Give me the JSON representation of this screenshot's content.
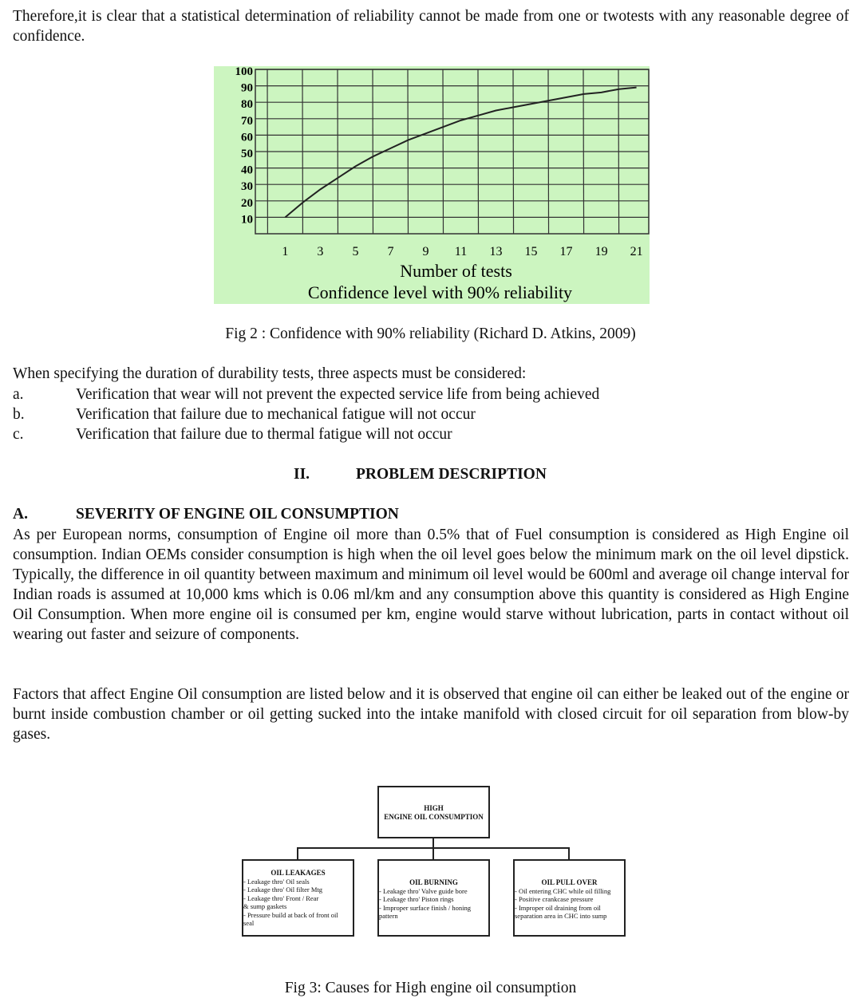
{
  "intro": "Therefore,it is clear that a statistical determination of reliability cannot be made from one or twotests with any reasonable degree of confidence.",
  "chart_data": {
    "type": "line",
    "xlabel": "Number of tests",
    "subtitle": "Confidence level with 90% reliability",
    "x": [
      1,
      2,
      3,
      4,
      5,
      6,
      7,
      8,
      9,
      10,
      11,
      12,
      13,
      14,
      15,
      16,
      17,
      18,
      19,
      20,
      21
    ],
    "values": [
      10,
      19,
      27,
      34,
      41,
      47,
      52,
      57,
      61,
      65,
      69,
      72,
      75,
      77,
      79,
      81,
      83,
      85,
      86,
      88,
      89
    ],
    "color": "#222222",
    "background": "#ccf5c0",
    "xlim": [
      -0.7,
      21.7
    ],
    "xticks": [
      1,
      3,
      5,
      7,
      9,
      11,
      13,
      15,
      17,
      19,
      21
    ],
    "ylim": [
      0,
      100
    ],
    "yticks": [
      10,
      20,
      30,
      40,
      50,
      60,
      70,
      80,
      90,
      100
    ],
    "grid": true
  },
  "fig2_caption": "Fig 2 : Confidence with 90% reliability (Richard D. Atkins, 2009)",
  "aspects": {
    "lead": "When specifying the duration of durability tests, three aspects must be considered:",
    "items": [
      {
        "marker": "a.",
        "text": "Verification that wear will not prevent the expected service life from being achieved"
      },
      {
        "marker": "b.",
        "text": "Verification that failure due to mechanical fatigue will not occur"
      },
      {
        "marker": "c.",
        "text": "Verification that failure due to thermal fatigue will not occur"
      }
    ]
  },
  "section": {
    "number": "II.",
    "title": "PROBLEM DESCRIPTION"
  },
  "subsection": {
    "number": "A.",
    "title": "SEVERITY OF ENGINE OIL CONSUMPTION"
  },
  "paragraphs": [
    "As per European norms, consumption of Engine oil more than 0.5% that of Fuel consumption is considered as High Engine oil consumption. Indian OEMs consider consumption is high when the oil level goes below the minimum mark on the oil level dipstick. Typically, the difference in oil quantity between maximum and minimum oil level would be 600ml and average oil change interval for Indian roads is assumed at 10,000 kms which is 0.06 ml/km and any consumption above this quantity is considered as High Engine Oil Consumption. When more engine oil is consumed per km, engine would starve without lubrication, parts in contact without oil wearing out faster and seizure of components.",
    "Factors that affect Engine Oil consumption are listed below and it is observed that engine oil can either be leaked out of the engine or burnt inside combustion chamber or oil getting sucked into the intake manifold with closed circuit for oil separation from blow-by gases."
  ],
  "diagram": {
    "root": [
      "HIGH",
      "ENGINE OIL CONSUMPTION"
    ],
    "children": [
      {
        "title": "OIL LEAKAGES",
        "lines": [
          "- Leakage thro' Oil seals",
          "- Leakage thro' Oil filter Mtg",
          "- Leakage thro' Front / Rear",
          "& sump gaskets",
          "- Pressure build at back of front oil",
          "seal"
        ]
      },
      {
        "title": "OIL BURNING",
        "lines": [
          "- Leakage thro' Valve guide bore",
          "- Leakage thro' Piston rings",
          "- Improper surface finish / honing",
          "pattern"
        ]
      },
      {
        "title": "OIL PULL OVER",
        "lines": [
          "- Oil entering CHC while oil filling",
          "- Positive crankcase pressure",
          "- Improper oil draining from oil",
          "separation area in CHC into sump"
        ]
      }
    ]
  },
  "fig3_caption": "Fig 3: Causes for High engine oil consumption"
}
